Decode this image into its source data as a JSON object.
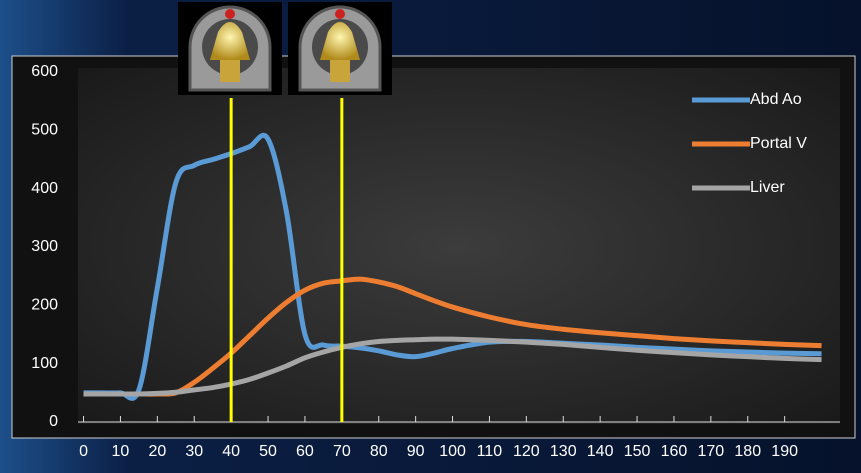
{
  "chart_data": {
    "type": "line",
    "x": [
      0,
      5,
      10,
      15,
      20,
      25,
      30,
      35,
      40,
      45,
      50,
      55,
      60,
      65,
      70,
      75,
      80,
      85,
      90,
      95,
      100,
      110,
      120,
      130,
      140,
      150,
      160,
      170,
      180,
      190,
      200
    ],
    "series": [
      {
        "name": "Abd Ao",
        "color": "#5b9bd5",
        "values": [
          50,
          50,
          50,
          55,
          230,
          410,
          440,
          450,
          460,
          472,
          485,
          360,
          150,
          132,
          130,
          127,
          122,
          115,
          112,
          118,
          126,
          137,
          138,
          135,
          132,
          128,
          125,
          122,
          120,
          118,
          117
        ]
      },
      {
        "name": "Portal V",
        "color": "#ed7d31",
        "values": [
          48,
          48,
          48,
          48,
          48,
          50,
          68,
          92,
          118,
          148,
          178,
          205,
          226,
          238,
          242,
          245,
          240,
          232,
          220,
          208,
          197,
          180,
          167,
          159,
          153,
          148,
          143,
          139,
          136,
          133,
          131
        ]
      },
      {
        "name": "Liver",
        "color": "#a5a5a5",
        "values": [
          48,
          48,
          48,
          48,
          49,
          51,
          55,
          59,
          65,
          73,
          84,
          96,
          110,
          120,
          128,
          134,
          138,
          140,
          141,
          142,
          142,
          140,
          137,
          133,
          128,
          123,
          119,
          115,
          112,
          109,
          107
        ]
      }
    ],
    "xlim": [
      -1.5,
      205
    ],
    "xticks": [
      0,
      10,
      20,
      30,
      40,
      50,
      60,
      70,
      80,
      90,
      100,
      110,
      120,
      130,
      140,
      150,
      160,
      170,
      180,
      190
    ],
    "ylim": [
      0,
      600
    ],
    "yticks": [
      0,
      100,
      200,
      300,
      400,
      500,
      600
    ],
    "vlines": [
      40,
      70
    ],
    "vline_color": "#ffff00",
    "legend": "upper right"
  }
}
